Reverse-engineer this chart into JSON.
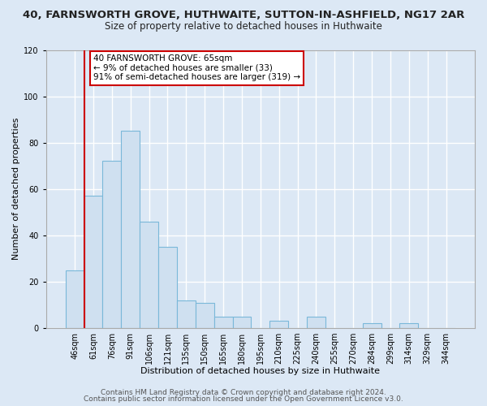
{
  "title": "40, FARNSWORTH GROVE, HUTHWAITE, SUTTON-IN-ASHFIELD, NG17 2AR",
  "subtitle": "Size of property relative to detached houses in Huthwaite",
  "xlabel": "Distribution of detached houses by size in Huthwaite",
  "ylabel": "Number of detached properties",
  "bar_labels": [
    "46sqm",
    "61sqm",
    "76sqm",
    "91sqm",
    "106sqm",
    "121sqm",
    "135sqm",
    "150sqm",
    "165sqm",
    "180sqm",
    "195sqm",
    "210sqm",
    "225sqm",
    "240sqm",
    "255sqm",
    "270sqm",
    "284sqm",
    "299sqm",
    "314sqm",
    "329sqm",
    "344sqm"
  ],
  "bar_heights": [
    25,
    57,
    72,
    85,
    46,
    35,
    12,
    11,
    5,
    5,
    0,
    3,
    0,
    5,
    0,
    0,
    2,
    0,
    2,
    0,
    0
  ],
  "bar_color": "#cfe0f0",
  "bar_edge_color": "#7ab8d9",
  "ylim": [
    0,
    120
  ],
  "yticks": [
    0,
    20,
    40,
    60,
    80,
    100,
    120
  ],
  "vline_color": "#cc0000",
  "annotation_line1": "40 FARNSWORTH GROVE: 65sqm",
  "annotation_line2": "← 9% of detached houses are smaller (33)",
  "annotation_line3": "91% of semi-detached houses are larger (319) →",
  "annotation_box_color": "#ffffff",
  "annotation_box_edge": "#cc0000",
  "footer_line1": "Contains HM Land Registry data © Crown copyright and database right 2024.",
  "footer_line2": "Contains public sector information licensed under the Open Government Licence v3.0.",
  "background_color": "#dce8f5",
  "grid_color": "#ffffff",
  "title_fontsize": 9.5,
  "subtitle_fontsize": 8.5,
  "tick_fontsize": 7,
  "xlabel_fontsize": 8,
  "ylabel_fontsize": 8,
  "annotation_fontsize": 7.5,
  "footer_fontsize": 6.5
}
